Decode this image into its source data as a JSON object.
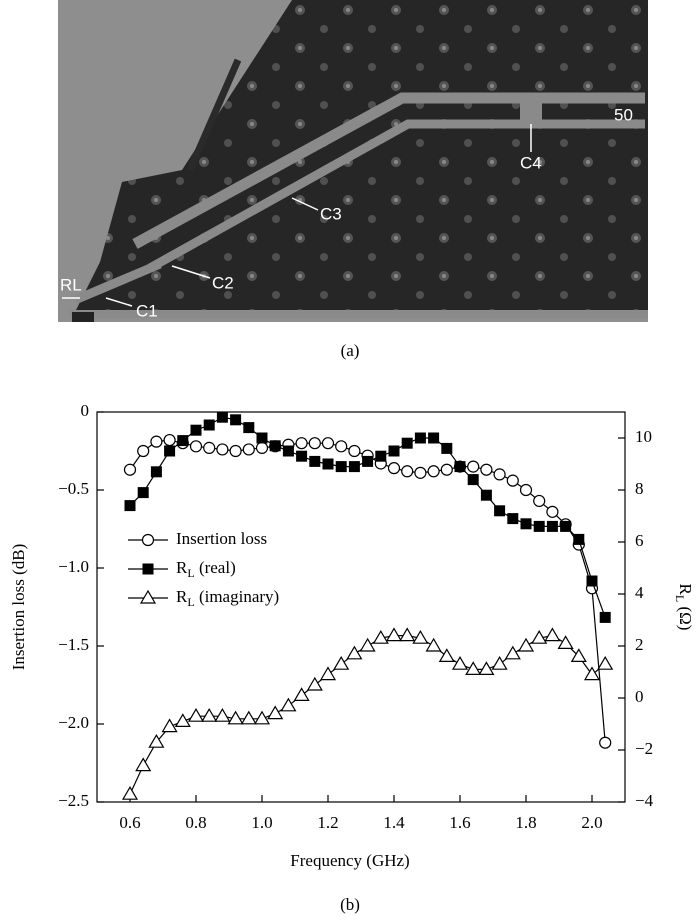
{
  "figure": {
    "caption_a": "(a)",
    "caption_b": "(b)",
    "pcb_labels": {
      "rl": "RL",
      "c1": "C1",
      "c2": "C2",
      "c3": "C3",
      "c4": "C4",
      "port": "50"
    }
  },
  "chart_data": {
    "type": "line",
    "x_label": "Frequency (GHz)",
    "y_label": "Insertion loss (dB)",
    "y2_label": "RL (Ω)",
    "x": [
      0.6,
      0.64,
      0.68,
      0.72,
      0.76,
      0.8,
      0.84,
      0.88,
      0.92,
      0.96,
      1.0,
      1.04,
      1.08,
      1.12,
      1.16,
      1.2,
      1.24,
      1.28,
      1.32,
      1.36,
      1.4,
      1.44,
      1.48,
      1.52,
      1.56,
      1.6,
      1.64,
      1.68,
      1.72,
      1.76,
      1.8,
      1.84,
      1.88,
      1.92,
      1.96,
      2.0,
      2.04
    ],
    "series": [
      {
        "name": "Insertion loss",
        "color": "#000000",
        "marker": "circle",
        "axis": "y",
        "values": [
          -0.37,
          -0.25,
          -0.19,
          -0.18,
          -0.2,
          -0.22,
          -0.23,
          -0.24,
          -0.25,
          -0.24,
          -0.23,
          -0.22,
          -0.21,
          -0.2,
          -0.2,
          -0.2,
          -0.22,
          -0.25,
          -0.28,
          -0.33,
          -0.36,
          -0.38,
          -0.39,
          -0.38,
          -0.37,
          -0.35,
          -0.35,
          -0.37,
          -0.4,
          -0.44,
          -0.5,
          -0.57,
          -0.64,
          -0.72,
          -0.85,
          -1.13,
          -2.12
        ]
      },
      {
        "name": "RL (real)",
        "color": "#000000",
        "marker": "square",
        "axis": "y2",
        "values": [
          7.4,
          7.9,
          8.7,
          9.5,
          9.9,
          10.3,
          10.5,
          10.8,
          10.7,
          10.4,
          10.0,
          9.7,
          9.5,
          9.3,
          9.1,
          9.0,
          8.9,
          8.9,
          9.1,
          9.3,
          9.5,
          9.8,
          10.0,
          10.0,
          9.6,
          8.9,
          8.4,
          7.8,
          7.2,
          6.9,
          6.7,
          6.6,
          6.6,
          6.6,
          6.1,
          4.5,
          3.1
        ]
      },
      {
        "name": "RL (imaginary)",
        "color": "#000000",
        "marker": "triangle",
        "axis": "y2",
        "values": [
          -3.7,
          -2.6,
          -1.7,
          -1.1,
          -0.9,
          -0.7,
          -0.7,
          -0.7,
          -0.8,
          -0.8,
          -0.8,
          -0.6,
          -0.3,
          0.1,
          0.5,
          0.9,
          1.3,
          1.7,
          2.0,
          2.3,
          2.4,
          2.4,
          2.3,
          2.0,
          1.6,
          1.3,
          1.1,
          1.1,
          1.3,
          1.7,
          2.0,
          2.3,
          2.4,
          2.1,
          1.6,
          0.9,
          1.3
        ]
      }
    ],
    "xlim": [
      0.5,
      2.1
    ],
    "xticks": [
      0.6,
      0.8,
      {
        "value": 1.0,
        "label": "1.0"
      },
      1.2,
      1.4,
      1.6,
      1.8,
      {
        "value": 2.0,
        "label": "2.0"
      }
    ],
    "ylim": [
      -2.5,
      0
    ],
    "yticks": [
      {
        "value": -2.5,
        "label": "−2.5"
      },
      {
        "value": -2.0,
        "label": "−2.0"
      },
      {
        "value": -1.5,
        "label": "−1.5"
      },
      {
        "value": -1.0,
        "label": "−1.0"
      },
      {
        "value": -0.5,
        "label": "−0.5"
      },
      0
    ],
    "y2lim": [
      -4,
      11
    ],
    "y2ticks": [
      {
        "value": -4,
        "label": "−4"
      },
      {
        "value": -2,
        "label": "−2"
      },
      0,
      2,
      4,
      6,
      8,
      10
    ],
    "legend": "left"
  }
}
